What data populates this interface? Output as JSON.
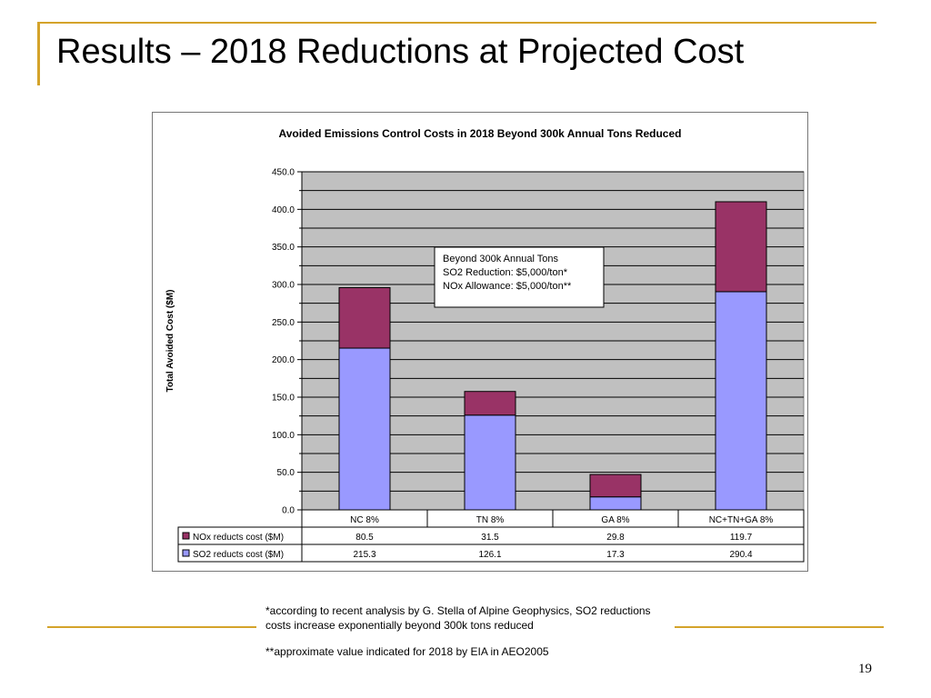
{
  "slide": {
    "title": "Results – 2018 Reductions at Projected Cost",
    "footnote_1": "*according to recent analysis by G. Stella of Alpine Geophysics, SO2 reductions costs increase exponentially beyond 300k tons reduced",
    "footnote_2": "**approximate value indicated for 2018 by EIA in AEO2005",
    "page_number": "19",
    "accent_color": "#d4a32a"
  },
  "chart_data": {
    "type": "bar",
    "stacked": true,
    "title": "Avoided Emissions Control Costs in 2018 Beyond 300k Annual Tons Reduced",
    "xlabel": "",
    "ylabel": "Total Avoided Cost ($M)",
    "ylim": [
      0,
      450
    ],
    "yticks": [
      0,
      50,
      100,
      150,
      200,
      250,
      300,
      350,
      400,
      450
    ],
    "grid": true,
    "categories": [
      "NC 8%",
      "TN 8%",
      "GA 8%",
      "NC+TN+GA 8%"
    ],
    "series": [
      {
        "name": "SO2 reducts cost ($M)",
        "color": "#9999ff",
        "values": [
          215.3,
          126.1,
          17.3,
          290.4
        ],
        "labels": [
          "215.3",
          "126.1",
          "17.3",
          "290.4"
        ]
      },
      {
        "name": "NOx reducts cost ($M)",
        "color": "#993366",
        "values": [
          80.5,
          31.5,
          29.8,
          119.7
        ],
        "labels": [
          "80.5",
          "31.5",
          "29.8",
          "119.7"
        ]
      }
    ],
    "annotation": [
      "Beyond 300k Annual Tons",
      "SO2 Reduction: $5,000/ton*",
      "NOx Allowance: $5,000/ton**"
    ],
    "plot_background": "#c0c0c0"
  }
}
